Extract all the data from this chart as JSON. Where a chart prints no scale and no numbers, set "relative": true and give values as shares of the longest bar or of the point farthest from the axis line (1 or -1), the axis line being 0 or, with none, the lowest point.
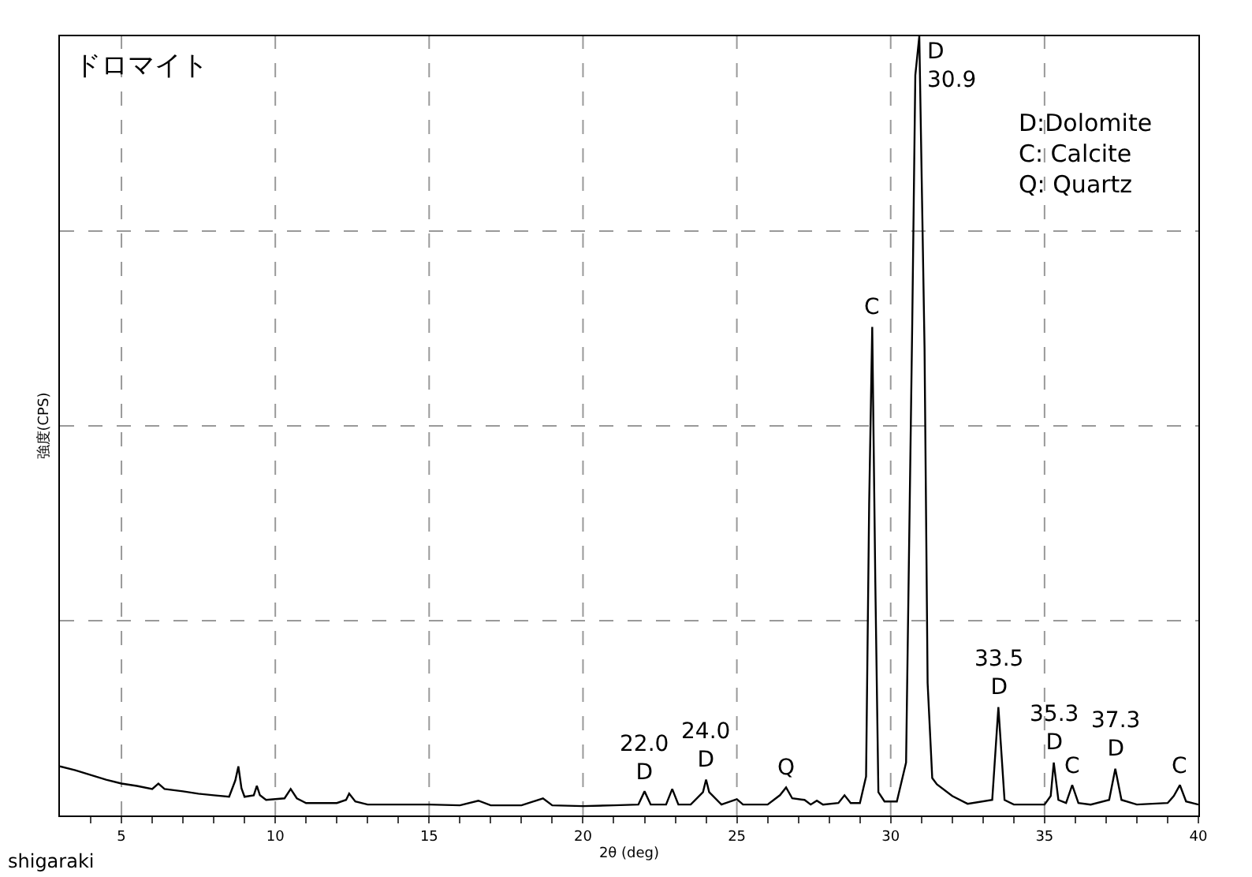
{
  "chart_data": {
    "type": "line",
    "title": "ドロマイト",
    "xlabel": "2θ (deg)",
    "ylabel": "強度(CPS)",
    "relative": true,
    "grid": true,
    "marker": "none",
    "line_style": "solid",
    "x": [
      3.0,
      3.5,
      4.0,
      4.5,
      5.0,
      5.5,
      6.0,
      6.2,
      6.4,
      7.0,
      7.5,
      8.0,
      8.5,
      8.7,
      8.8,
      8.9,
      9.0,
      9.3,
      9.4,
      9.5,
      9.7,
      10.3,
      10.5,
      10.7,
      11.0,
      12.0,
      12.3,
      12.4,
      12.6,
      13.0,
      14.0,
      15.0,
      16.0,
      16.6,
      17.0,
      18.0,
      18.7,
      19.0,
      20.0,
      21.0,
      21.8,
      22.0,
      22.2,
      22.7,
      22.9,
      23.1,
      23.5,
      23.9,
      24.0,
      24.1,
      24.5,
      25.0,
      25.2,
      26.0,
      26.4,
      26.6,
      26.8,
      27.2,
      27.4,
      27.6,
      27.8,
      28.3,
      28.5,
      28.7,
      29.0,
      29.2,
      29.3,
      29.4,
      29.5,
      29.6,
      29.8,
      30.2,
      30.5,
      30.7,
      30.8,
      30.93,
      31.1,
      31.2,
      31.35,
      31.5,
      32.0,
      32.5,
      33.3,
      33.5,
      33.7,
      34.0,
      35.0,
      35.2,
      35.3,
      35.45,
      35.7,
      35.9,
      36.1,
      36.5,
      37.1,
      37.3,
      37.5,
      38.0,
      39.0,
      39.2,
      39.4,
      39.6,
      40.0
    ],
    "series": [
      {
        "color": "#000000",
        "values": [
          0.063,
          0.058,
          0.052,
          0.046,
          0.041,
          0.038,
          0.034,
          0.041,
          0.034,
          0.031,
          0.028,
          0.026,
          0.024,
          0.045,
          0.063,
          0.035,
          0.024,
          0.026,
          0.038,
          0.026,
          0.02,
          0.022,
          0.034,
          0.022,
          0.016,
          0.016,
          0.02,
          0.028,
          0.018,
          0.014,
          0.014,
          0.014,
          0.013,
          0.019,
          0.013,
          0.013,
          0.022,
          0.013,
          0.012,
          0.013,
          0.014,
          0.031,
          0.014,
          0.014,
          0.034,
          0.014,
          0.014,
          0.03,
          0.046,
          0.03,
          0.014,
          0.021,
          0.014,
          0.014,
          0.026,
          0.036,
          0.022,
          0.02,
          0.014,
          0.019,
          0.014,
          0.016,
          0.026,
          0.016,
          0.016,
          0.05,
          0.4,
          0.627,
          0.3,
          0.03,
          0.018,
          0.018,
          0.068,
          0.63,
          0.95,
          1,
          0.6,
          0.17,
          0.048,
          0.04,
          0.025,
          0.015,
          0.02,
          0.139,
          0.02,
          0.014,
          0.014,
          0.025,
          0.068,
          0.02,
          0.016,
          0.039,
          0.016,
          0.014,
          0.02,
          0.06,
          0.02,
          0.014,
          0.016,
          0.025,
          0.039,
          0.018,
          0.014
        ]
      }
    ],
    "xlim": [
      3,
      40
    ],
    "xticks": [
      {
        "value": 4,
        "label": null
      },
      5,
      {
        "value": 6,
        "label": null
      },
      {
        "value": 7,
        "label": null
      },
      {
        "value": 8,
        "label": null
      },
      {
        "value": 9,
        "label": null
      },
      10,
      {
        "value": 11,
        "label": null
      },
      {
        "value": 12,
        "label": null
      },
      {
        "value": 13,
        "label": null
      },
      {
        "value": 14,
        "label": null
      },
      15,
      {
        "value": 16,
        "label": null
      },
      {
        "value": 17,
        "label": null
      },
      {
        "value": 18,
        "label": null
      },
      {
        "value": 19,
        "label": null
      },
      20,
      {
        "value": 21,
        "label": null
      },
      {
        "value": 22,
        "label": null
      },
      {
        "value": 23,
        "label": null
      },
      {
        "value": 24,
        "label": null
      },
      25,
      {
        "value": 26,
        "label": null
      },
      {
        "value": 27,
        "label": null
      },
      {
        "value": 28,
        "label": null
      },
      {
        "value": 29,
        "label": null
      },
      30,
      {
        "value": 31,
        "label": null
      },
      {
        "value": 32,
        "label": null
      },
      {
        "value": 33,
        "label": null
      },
      {
        "value": 34,
        "label": null
      },
      35,
      {
        "value": 36,
        "label": null
      },
      {
        "value": 37,
        "label": null
      },
      {
        "value": 38,
        "label": null
      },
      {
        "value": 39,
        "label": null
      },
      40
    ],
    "annotations": [
      {
        "text": "22.0\nD",
        "x": 22.0,
        "y": 0.031
      },
      {
        "text": "24.0\nD",
        "x": 24.0,
        "y": 0.046
      },
      {
        "text": "Q",
        "x": 26.6,
        "y": 0.036
      },
      {
        "text": "C",
        "x": 29.4,
        "y": 0.627
      },
      {
        "text": "D\n30.9",
        "x": 30.93,
        "y": 1
      },
      {
        "text": "33.5\nD",
        "x": 33.5,
        "y": 0.139
      },
      {
        "text": "35.3\nD",
        "x": 35.3,
        "y": 0.068
      },
      {
        "text": "C",
        "x": 35.9,
        "y": 0.039
      },
      {
        "text": "37.3\nD",
        "x": 37.3,
        "y": 0.06
      },
      {
        "text": "C",
        "x": 39.4,
        "y": 0.039
      },
      "D:Dolomite\nC: Calcite\nQ: Quartz",
      "shigaraki"
    ]
  }
}
